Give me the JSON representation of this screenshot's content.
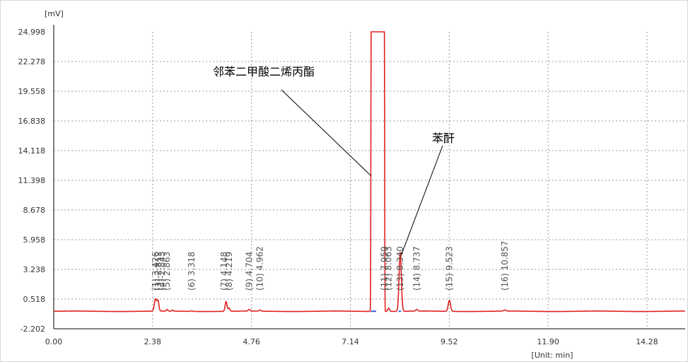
{
  "chart_data": {
    "type": "line",
    "title": "",
    "ylabel": "[mV]",
    "xlabel": "[Unit: min]",
    "xlim": [
      0,
      15.2
    ],
    "ylim": [
      -2.202,
      25.0
    ],
    "x_ticks": [
      "0.00",
      "2.38",
      "4.76",
      "7.14",
      "9.52",
      "11.90",
      "14.28"
    ],
    "x_tick_values": [
      0,
      2.38,
      4.76,
      7.14,
      9.52,
      11.9,
      14.28
    ],
    "y_ticks": [
      "24.998",
      "22.278",
      "19.558",
      "16.838",
      "14.118",
      "11.398",
      "8.678",
      "5.958",
      "3.238",
      "0.518",
      "-2.202"
    ],
    "y_tick_values": [
      24.998,
      22.278,
      19.558,
      16.838,
      14.118,
      11.398,
      8.678,
      5.958,
      3.238,
      0.518,
      -2.202
    ],
    "grid": true,
    "series_color": "#e02020",
    "baseline_y": -0.6,
    "peaks": [
      {
        "t": 2.45,
        "h": 1.1,
        "w": 0.05
      },
      {
        "t": 2.51,
        "h": 0.9,
        "w": 0.04
      },
      {
        "t": 2.73,
        "h": 0.15,
        "w": 0.03
      },
      {
        "t": 2.86,
        "h": 0.1,
        "w": 0.03
      },
      {
        "t": 3.318,
        "h": 0.05,
        "w": 0.04
      },
      {
        "t": 4.148,
        "h": 0.9,
        "w": 0.04
      },
      {
        "t": 4.219,
        "h": 0.3,
        "w": 0.04
      },
      {
        "t": 4.704,
        "h": 0.15,
        "w": 0.04
      },
      {
        "t": 4.962,
        "h": 0.1,
        "w": 0.04
      },
      {
        "t": 7.8,
        "h": 25.8,
        "w": 0.06,
        "flat": true,
        "start": 7.64,
        "end": 7.96
      },
      {
        "t": 8.063,
        "h": 0.3,
        "w": 0.04
      },
      {
        "t": 8.34,
        "h": 5.4,
        "w": 0.05
      },
      {
        "t": 8.737,
        "h": 0.15,
        "w": 0.04
      },
      {
        "t": 9.523,
        "h": 1.0,
        "w": 0.05
      },
      {
        "t": 10.857,
        "h": 0.1,
        "w": 0.05
      }
    ],
    "peak_labels": [
      {
        "text": "(1) 3.426",
        "x": 2.45
      },
      {
        "text": "(3)-2.812",
        "x": 2.52
      },
      {
        "text": "(4)-2.843",
        "x": 2.6
      },
      {
        "text": "(5) 2.863",
        "x": 2.72
      },
      {
        "text": "(6) 3.318",
        "x": 3.318
      },
      {
        "text": "(7) 4.148",
        "x": 4.1
      },
      {
        "text": "(8) 4.219",
        "x": 4.219
      },
      {
        "text": "(9) 4.704",
        "x": 4.704
      },
      {
        "text": "(10) 4.962",
        "x": 4.962
      },
      {
        "text": "(11) 7.959",
        "x": 7.959
      },
      {
        "text": "(12) 8.063",
        "x": 8.063
      },
      {
        "text": "(13) 8.340",
        "x": 8.34
      },
      {
        "text": "(14) 8.737",
        "x": 8.737
      },
      {
        "text": "(15) 9.523",
        "x": 9.523
      },
      {
        "text": "(16) 10.857",
        "x": 10.857
      }
    ],
    "annotations": [
      {
        "text": "邻苯二甲酸二烯丙酯",
        "target_x": 7.64,
        "target_y": 11.8
      },
      {
        "text": "苯酐",
        "target_x": 8.32,
        "target_y": 4.6
      }
    ]
  }
}
